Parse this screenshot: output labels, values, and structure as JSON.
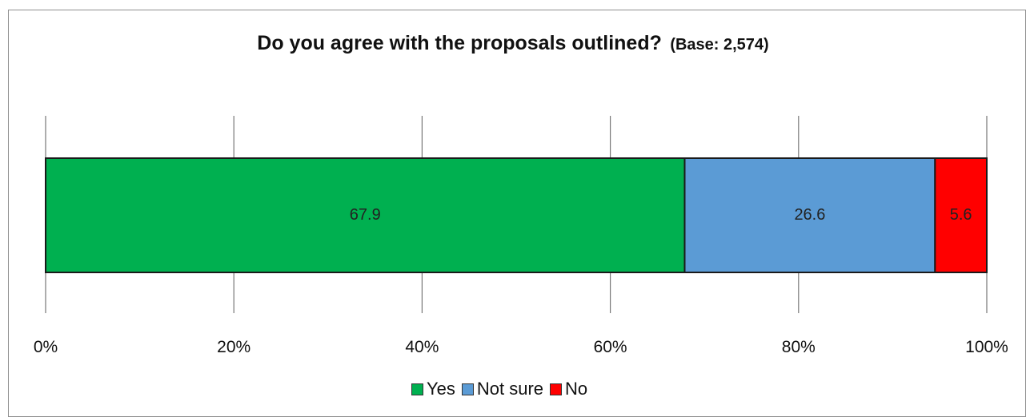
{
  "chart_data": {
    "type": "bar",
    "orientation": "horizontal",
    "stacked": true,
    "title": "Do you agree with the proposals outlined?",
    "subtitle": "(Base: 2,574)",
    "categories": [
      ""
    ],
    "x_ticks": [
      "0%",
      "20%",
      "40%",
      "60%",
      "80%",
      "100%"
    ],
    "xlim": [
      0,
      100
    ],
    "grid": true,
    "legend_position": "bottom",
    "series": [
      {
        "name": "Yes",
        "values": [
          67.9
        ],
        "color": "#00b050",
        "label": "67.9"
      },
      {
        "name": "Not sure",
        "values": [
          26.6
        ],
        "color": "#5b9bd5",
        "label": "26.6"
      },
      {
        "name": "No",
        "values": [
          5.6
        ],
        "color": "#ff0000",
        "label": "5.6"
      }
    ]
  }
}
